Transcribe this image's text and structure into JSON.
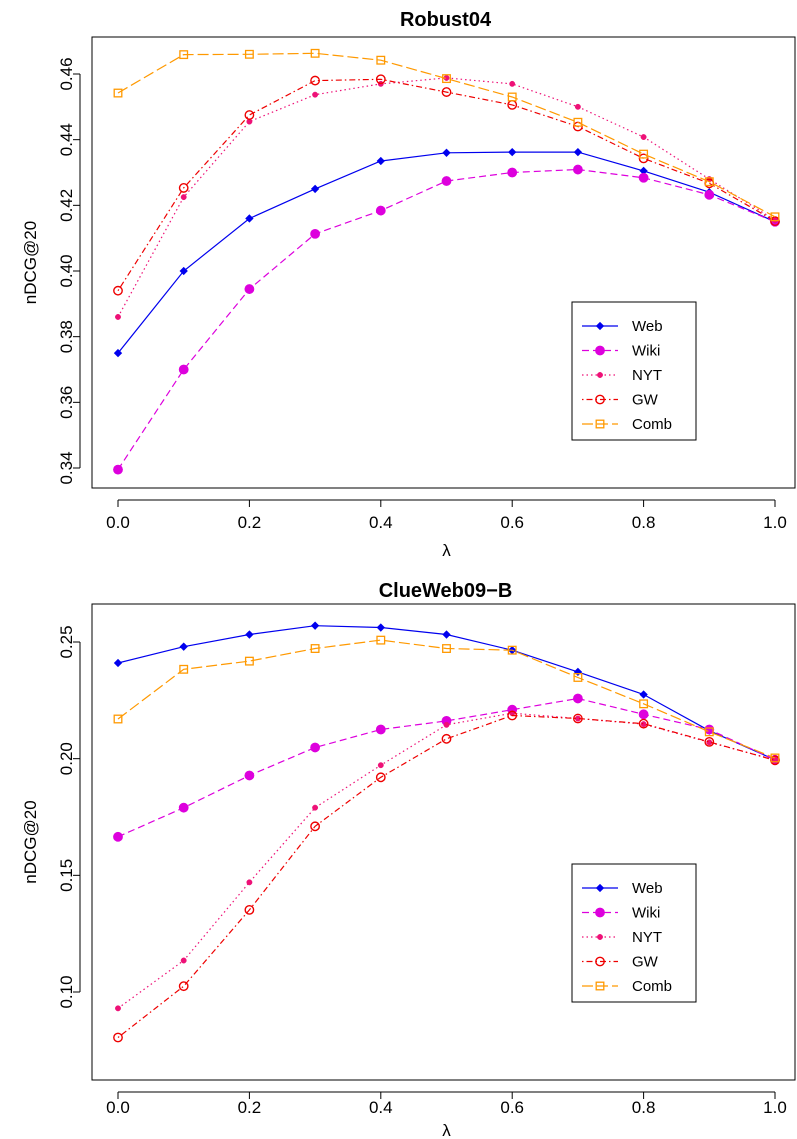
{
  "chart_data": [
    {
      "type": "line",
      "title": "Robust04",
      "xlabel": "λ",
      "ylabel": "nDCG@20",
      "x": [
        0.0,
        0.1,
        0.2,
        0.3,
        0.4,
        0.5,
        0.6,
        0.7,
        0.8,
        0.9,
        1.0
      ],
      "xlim": [
        0.0,
        1.0
      ],
      "ylim": [
        0.34,
        0.46
      ],
      "xticks": [
        "0.0",
        "0.2",
        "0.4",
        "0.6",
        "0.8",
        "1.0"
      ],
      "yticks": [
        "0.34",
        "0.36",
        "0.38",
        "0.40",
        "0.42",
        "0.44",
        "0.46"
      ],
      "legend_position": "bottom-right",
      "series": [
        {
          "name": "Web",
          "color": "#0000ee",
          "dash": "solid",
          "marker": "diamond",
          "values": [
            0.375,
            0.4,
            0.416,
            0.425,
            0.4335,
            0.436,
            0.4362,
            0.4362,
            0.4305,
            0.424,
            0.415
          ]
        },
        {
          "name": "Wiki",
          "color": "#dd00dd",
          "dash": "dashed",
          "marker": "filled-circle",
          "values": [
            0.3395,
            0.37,
            0.3945,
            0.4113,
            0.4184,
            0.4274,
            0.43,
            0.4309,
            0.4284,
            0.4232,
            0.415
          ]
        },
        {
          "name": "NYT",
          "color": "#ee1177",
          "dash": "dotted",
          "marker": "small-dot",
          "values": [
            0.386,
            0.4225,
            0.4455,
            0.4537,
            0.457,
            0.4588,
            0.457,
            0.45,
            0.4408,
            0.428,
            0.4155
          ]
        },
        {
          "name": "GW",
          "color": "#ee0000",
          "dash": "dotdash",
          "marker": "open-circle",
          "values": [
            0.394,
            0.4253,
            0.4475,
            0.458,
            0.4584,
            0.4545,
            0.4506,
            0.444,
            0.4343,
            0.4267,
            0.4152
          ]
        },
        {
          "name": "Comb",
          "color": "#ff9900",
          "dash": "longdash",
          "marker": "open-square",
          "values": [
            0.4542,
            0.4659,
            0.466,
            0.4663,
            0.4642,
            0.4586,
            0.453,
            0.4453,
            0.4356,
            0.4272,
            0.4165
          ]
        }
      ]
    },
    {
      "type": "line",
      "title": "ClueWeb09−B",
      "xlabel": "λ",
      "ylabel": "nDCG@20",
      "x": [
        0.0,
        0.1,
        0.2,
        0.3,
        0.4,
        0.5,
        0.6,
        0.7,
        0.8,
        0.9,
        1.0
      ],
      "xlim": [
        0.0,
        1.0
      ],
      "ylim": [
        0.08,
        0.26
      ],
      "xticks": [
        "0.0",
        "0.2",
        "0.4",
        "0.6",
        "0.8",
        "1.0"
      ],
      "yticks": [
        "0.10",
        "0.15",
        "0.20",
        "0.25"
      ],
      "legend_position": "bottom-right",
      "series": [
        {
          "name": "Web",
          "color": "#0000ee",
          "dash": "solid",
          "marker": "diamond",
          "values": [
            0.241,
            0.248,
            0.2532,
            0.257,
            0.2562,
            0.2532,
            0.2465,
            0.2372,
            0.2275,
            0.212,
            0.1995
          ]
        },
        {
          "name": "Wiki",
          "color": "#dd00dd",
          "dash": "dashed",
          "marker": "filled-circle",
          "values": [
            0.1665,
            0.179,
            0.1928,
            0.2048,
            0.2125,
            0.2162,
            0.221,
            0.2258,
            0.219,
            0.2125,
            0.1995
          ]
        },
        {
          "name": "NYT",
          "color": "#ee1177",
          "dash": "dotted",
          "marker": "small-dot",
          "values": [
            0.093,
            0.1135,
            0.147,
            0.179,
            0.1972,
            0.2145,
            0.2195,
            0.2172,
            0.2148,
            0.207,
            0.1995
          ]
        },
        {
          "name": "GW",
          "color": "#ee0000",
          "dash": "dotdash",
          "marker": "open-circle",
          "values": [
            0.0805,
            0.1025,
            0.1352,
            0.171,
            0.192,
            0.2085,
            0.2185,
            0.2172,
            0.215,
            0.2072,
            0.1993
          ]
        },
        {
          "name": "Comb",
          "color": "#ff9900",
          "dash": "longdash",
          "marker": "open-square",
          "values": [
            0.217,
            0.2383,
            0.2418,
            0.2472,
            0.2508,
            0.2472,
            0.2465,
            0.2348,
            0.2235,
            0.2115,
            0.2003
          ]
        }
      ]
    }
  ]
}
